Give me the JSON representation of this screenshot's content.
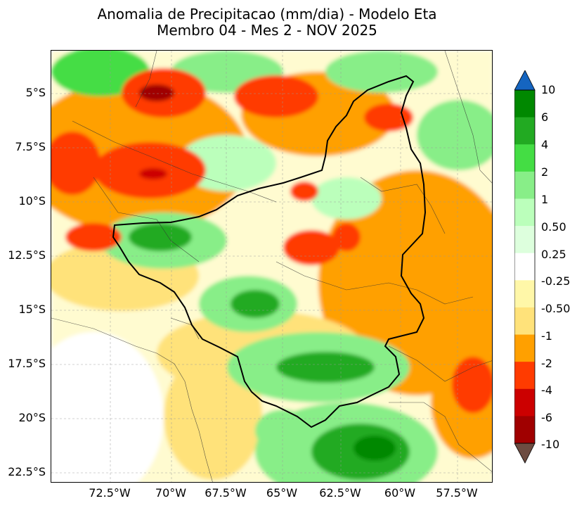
{
  "title": {
    "line1": "Anomalia de Precipitacao (mm/dia) - Modelo Eta",
    "line2": "Membro 04 - Mes 2 - NOV 2025"
  },
  "axes": {
    "lat_labels": [
      "5°S",
      "7.5°S",
      "10°S",
      "12.5°S",
      "15°S",
      "17.5°S",
      "20°S",
      "22.5°S"
    ],
    "lon_labels": [
      "72.5°W",
      "70°W",
      "67.5°W",
      "65°W",
      "62.5°W",
      "60°W",
      "57.5°W"
    ]
  },
  "colorbar": {
    "labels": [
      "10",
      "6",
      "4",
      "2",
      "1",
      "0.50",
      "0.25",
      "-0.25",
      "-0.50",
      "-1",
      "-2",
      "-4",
      "-6",
      "-10"
    ],
    "colors": {
      "over": "#1565c0",
      "under": "#6d4c41",
      "bins": [
        "#008800",
        "#22aa22",
        "#44dd44",
        "#88ee88",
        "#bbffbb",
        "#ddffdd",
        "#ffffff",
        "#fff7a8",
        "#ffe27a",
        "#ffa000",
        "#ff3b00",
        "#cc0000",
        "#a00000"
      ]
    }
  },
  "colors": {
    "green_dark": "#008800",
    "green": "#22aa22",
    "green_light": "#44dd44",
    "green_pale": "#88ee88",
    "green_faint": "#bbffbb",
    "yellow_pale": "#fff7a8",
    "yellow": "#ffe27a",
    "orange": "#ffa000",
    "red_orange": "#ff3b00",
    "red": "#cc0000",
    "dark_red": "#a00000"
  }
}
